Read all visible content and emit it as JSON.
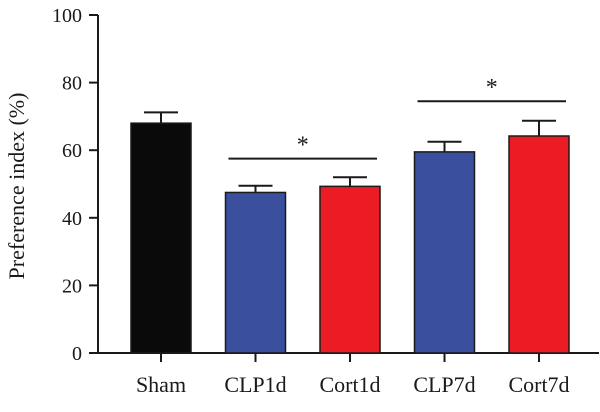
{
  "chart_data": {
    "type": "bar",
    "title": "",
    "xlabel": "",
    "ylabel": "Preference index (%)",
    "ylim": [
      0,
      100
    ],
    "yticks": [
      0,
      20,
      40,
      60,
      80,
      100
    ],
    "categories": [
      "Sham",
      "CLP1d",
      "Cort1d",
      "CLP7d",
      "Cort7d"
    ],
    "values": [
      68,
      47.5,
      49.3,
      59.5,
      64.2
    ],
    "errors": [
      3.2,
      2.0,
      2.7,
      3.0,
      4.5
    ],
    "colors": [
      "#0a0a0a",
      "#3a4f9e",
      "#ec1c24",
      "#3a4f9e",
      "#ec1c24"
    ],
    "grid": false,
    "significance": [
      {
        "from": 1,
        "to": 2,
        "y": 57.5,
        "label": "*"
      },
      {
        "from": 3,
        "to": 4,
        "y": 74.5,
        "label": "*"
      }
    ]
  }
}
